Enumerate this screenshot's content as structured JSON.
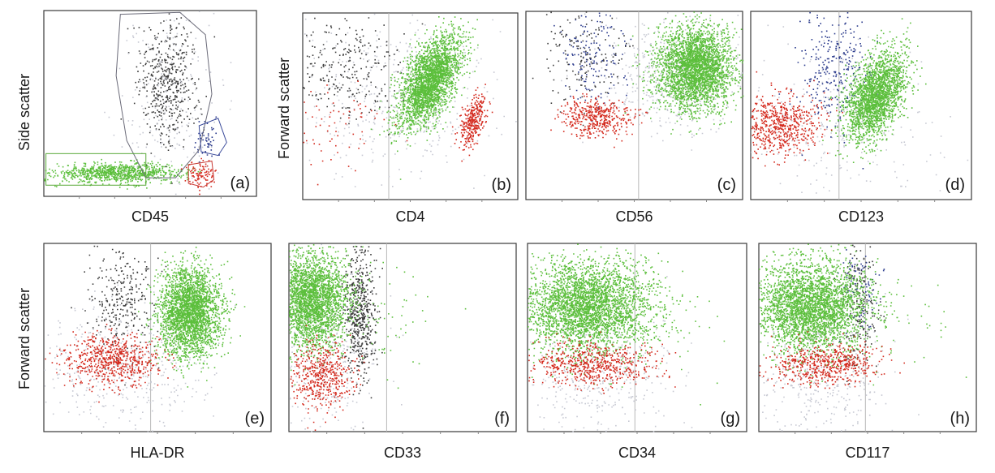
{
  "figure": {
    "y_label_top_left": "Side scatter",
    "y_label_top": "Forward scatter",
    "y_label_bottom": "Forward scatter"
  },
  "colors": {
    "green": "#5cbf3c",
    "red": "#d42a1e",
    "blue": "#2a3a8c",
    "dark": "#3c3c3c",
    "light": "#c6c8d2",
    "gate_grey": "#6a6a78",
    "gate_blue": "#3a4a9a",
    "gate_red": "#c83a34",
    "gate_green": "#5aaa3a"
  },
  "chart_data": [
    {
      "type": "scatter",
      "panel": "(a)",
      "xlabel": "CD45",
      "ylabel": "Side scatter",
      "xlim": [
        0,
        100
      ],
      "ylim": [
        0,
        100
      ],
      "populations": [
        {
          "color": "green",
          "n": 900,
          "cx": 35,
          "cy": 13,
          "sx": 15,
          "sy": 2.6
        },
        {
          "color": "red",
          "n": 100,
          "cx": 74,
          "cy": 12,
          "sx": 3.5,
          "sy": 3.5
        },
        {
          "color": "blue",
          "n": 50,
          "cx": 77,
          "cy": 30,
          "sx": 3.5,
          "sy": 5
        },
        {
          "color": "dark",
          "n": 500,
          "cx": 58,
          "cy": 62,
          "sx": 7,
          "sy": 17
        },
        {
          "color": "light",
          "n": 200,
          "cx": 58,
          "cy": 52,
          "sx": 12,
          "sy": 25
        }
      ]
    },
    {
      "type": "scatter",
      "panel": "(b)",
      "xlabel": "CD4",
      "ylabel": "Forward scatter",
      "xlim": [
        0,
        100
      ],
      "ylim": [
        0,
        100
      ],
      "threshold": 40,
      "populations": [
        {
          "color": "light",
          "n": 450,
          "cx": 45,
          "cy": 55,
          "sx": 22,
          "sy": 22
        },
        {
          "color": "dark",
          "n": 260,
          "cx": 22,
          "cy": 72,
          "sx": 14,
          "sy": 14
        },
        {
          "color": "green",
          "n": 2600,
          "cx": 59,
          "cy": 64,
          "sx": 7,
          "sy": 12,
          "rho": 0.55
        },
        {
          "color": "red",
          "n": 320,
          "cx": 79,
          "cy": 42,
          "sx": 3,
          "sy": 7,
          "rho": 0.5
        },
        {
          "color": "red",
          "n": 70,
          "cx": 18,
          "cy": 42,
          "sx": 12,
          "sy": 12
        }
      ]
    },
    {
      "type": "scatter",
      "panel": "(c)",
      "xlabel": "CD56",
      "ylabel": "Forward scatter",
      "xlim": [
        0,
        100
      ],
      "ylim": [
        0,
        100
      ],
      "threshold": 52,
      "populations": [
        {
          "color": "light",
          "n": 550,
          "cx": 68,
          "cy": 65,
          "sx": 16,
          "sy": 14
        },
        {
          "color": "blue",
          "n": 160,
          "cx": 30,
          "cy": 78,
          "sx": 8,
          "sy": 14
        },
        {
          "color": "dark",
          "n": 160,
          "cx": 28,
          "cy": 75,
          "sx": 11,
          "sy": 14
        },
        {
          "color": "green",
          "n": 2900,
          "cx": 78,
          "cy": 70,
          "sx": 9,
          "sy": 11
        },
        {
          "color": "red",
          "n": 420,
          "cx": 32,
          "cy": 44,
          "sx": 9,
          "sy": 5
        }
      ]
    },
    {
      "type": "scatter",
      "panel": "(d)",
      "xlabel": "CD123",
      "ylabel": "Forward scatter",
      "xlim": [
        0,
        100
      ],
      "ylim": [
        0,
        100
      ],
      "threshold": 40,
      "populations": [
        {
          "color": "light",
          "n": 280,
          "cx": 40,
          "cy": 40,
          "sx": 22,
          "sy": 18
        },
        {
          "color": "blue",
          "n": 280,
          "cx": 37,
          "cy": 70,
          "sx": 8,
          "sy": 17
        },
        {
          "color": "green",
          "n": 2200,
          "cx": 56,
          "cy": 55,
          "sx": 7,
          "sy": 12,
          "rho": 0.45
        },
        {
          "color": "red",
          "n": 650,
          "cx": 12,
          "cy": 40,
          "sx": 10,
          "sy": 8
        }
      ]
    },
    {
      "type": "scatter",
      "panel": "(e)",
      "xlabel": "HLA-DR",
      "ylabel": "Forward scatter",
      "xlim": [
        0,
        100
      ],
      "ylim": [
        0,
        100
      ],
      "threshold": 47,
      "populations": [
        {
          "color": "light",
          "n": 450,
          "cx": 35,
          "cy": 35,
          "sx": 20,
          "sy": 18
        },
        {
          "color": "dark",
          "n": 300,
          "cx": 34,
          "cy": 70,
          "sx": 7,
          "sy": 15
        },
        {
          "color": "green",
          "n": 2700,
          "cx": 64,
          "cy": 64,
          "sx": 7,
          "sy": 12
        },
        {
          "color": "red",
          "n": 650,
          "cx": 30,
          "cy": 38,
          "sx": 10,
          "sy": 7
        }
      ]
    },
    {
      "type": "scatter",
      "panel": "(f)",
      "xlabel": "CD33",
      "ylabel": "Forward scatter",
      "xlim": [
        0,
        100
      ],
      "ylim": [
        0,
        100
      ],
      "threshold": 43,
      "populations": [
        {
          "color": "light",
          "n": 380,
          "cx": 15,
          "cy": 45,
          "sx": 12,
          "sy": 22
        },
        {
          "color": "dark",
          "n": 550,
          "cx": 31,
          "cy": 65,
          "sx": 3.5,
          "sy": 18
        },
        {
          "color": "green",
          "n": 2700,
          "cx": 10,
          "cy": 70,
          "sx": 8,
          "sy": 13
        },
        {
          "color": "red",
          "n": 480,
          "cx": 14,
          "cy": 30,
          "sx": 7,
          "sy": 9
        },
        {
          "color": "green",
          "n": 50,
          "cx": 45,
          "cy": 65,
          "sx": 10,
          "sy": 15
        }
      ]
    },
    {
      "type": "scatter",
      "panel": "(g)",
      "xlabel": "CD34",
      "ylabel": "Forward scatter",
      "xlim": [
        0,
        100
      ],
      "ylim": [
        0,
        100
      ],
      "threshold": 49,
      "populations": [
        {
          "color": "light",
          "n": 450,
          "cx": 32,
          "cy": 32,
          "sx": 16,
          "sy": 18
        },
        {
          "color": "green",
          "n": 3300,
          "cx": 26,
          "cy": 67,
          "sx": 15,
          "sy": 12
        },
        {
          "color": "red",
          "n": 600,
          "cx": 30,
          "cy": 36,
          "sx": 14,
          "sy": 6
        },
        {
          "color": "green",
          "n": 70,
          "cx": 60,
          "cy": 62,
          "sx": 14,
          "sy": 15
        }
      ]
    },
    {
      "type": "scatter",
      "panel": "(h)",
      "xlabel": "CD117",
      "ylabel": "Forward scatter",
      "xlim": [
        0,
        100
      ],
      "ylim": [
        0,
        100
      ],
      "threshold": 49,
      "populations": [
        {
          "color": "light",
          "n": 420,
          "cx": 28,
          "cy": 32,
          "sx": 15,
          "sy": 17
        },
        {
          "color": "dark",
          "n": 200,
          "cx": 46,
          "cy": 68,
          "sx": 4,
          "sy": 18
        },
        {
          "color": "blue",
          "n": 80,
          "cx": 46,
          "cy": 80,
          "sx": 5,
          "sy": 10
        },
        {
          "color": "green",
          "n": 3100,
          "cx": 24,
          "cy": 67,
          "sx": 13,
          "sy": 12
        },
        {
          "color": "red",
          "n": 560,
          "cx": 30,
          "cy": 36,
          "sx": 13,
          "sy": 6
        },
        {
          "color": "green",
          "n": 40,
          "cx": 65,
          "cy": 60,
          "sx": 14,
          "sy": 14
        }
      ]
    }
  ]
}
